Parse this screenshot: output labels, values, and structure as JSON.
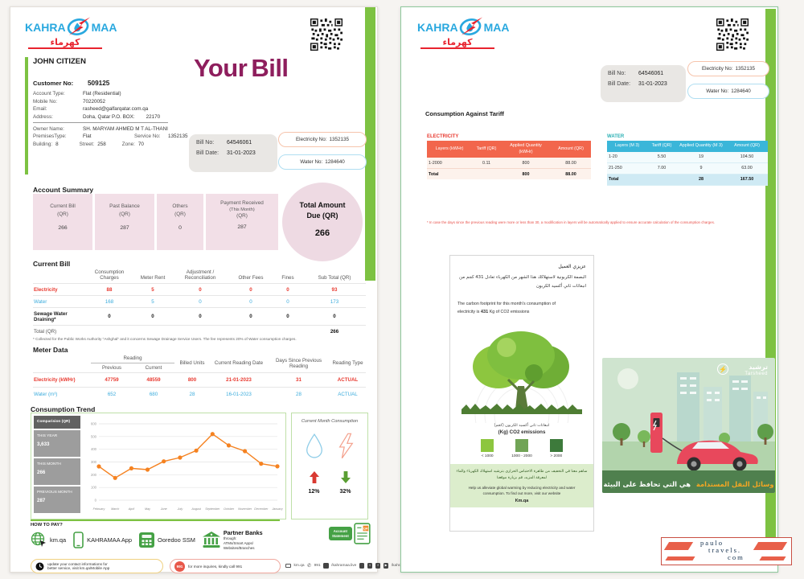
{
  "colors": {
    "brand_blue": "#29a8df",
    "brand_red": "#e8232e",
    "accent_green": "#7dc242",
    "pale_green": "#d5ecc2",
    "title_purple": "#8e1e5d",
    "pink_card": "#f2dfe7",
    "orange_header": "#f2664c",
    "blue_header": "#3ab6d9",
    "electricity_red": "#e8392f",
    "water_blue": "#3aabdc",
    "chart_orange": "#f58220",
    "legend_greens": [
      "#8dc63f",
      "#71a456",
      "#3d7a3b"
    ]
  },
  "brand": {
    "kahra": "KAHRA",
    "maa": "MAA",
    "arabic": "كهرماء"
  },
  "billbox": {
    "bill_no_label": "Bill No:",
    "bill_no": "64546061",
    "bill_date_label": "Bill Date:",
    "bill_date": "31-01-2023"
  },
  "service_pills": {
    "electricity_label": "Electricity No:",
    "electricity_no": "1352135",
    "water_label": "Water No:",
    "water_no": "1284640"
  },
  "page1": {
    "customer_name": "JOHN CITIZEN",
    "title_your": "Your",
    "title_bill": "Bill",
    "info": [
      {
        "label": "Customer No:",
        "value": "509125"
      },
      {
        "label": "Account Type:",
        "value": "Flat (Residential)"
      },
      {
        "label": "Mobile No:",
        "value": "70220052"
      },
      {
        "label": "Email:",
        "value": "rasheed@galfarqatar.com.qa"
      },
      {
        "label": "Address:",
        "value": "Doha, Qatar P.O. BOX:",
        "extra": "22170"
      }
    ],
    "owner": [
      {
        "label": "Owner Name:",
        "value": "SH. MARYAM AHMED M T AL-THANI"
      },
      {
        "label": "PremisesType:",
        "value": "Flat",
        "label2": "Service No:",
        "value2": "1352135"
      },
      {
        "label": "Building:",
        "value": "8",
        "label2": "Street:",
        "value2": "258",
        "label3": "Zone:",
        "value3": "70"
      }
    ],
    "account_summary": {
      "title": "Account Summary",
      "cards": [
        {
          "line1": "Current Bill",
          "line2": "(QR)",
          "value": "266"
        },
        {
          "line1": "Past Balance",
          "line2": "(QR)",
          "value": "287"
        },
        {
          "line1": "Others",
          "line2": "(QR)",
          "value": "0"
        },
        {
          "line1": "Payment Received",
          "line2": "(This Month)",
          "line3": "(QR)",
          "value": "287"
        }
      ],
      "total_line1": "Total Amount",
      "total_line2": "Due (QR)",
      "total_value": "266"
    },
    "current_bill": {
      "title": "Current Bill",
      "headers": [
        "Consumption Charges",
        "Meter Rent",
        "Adjustment / Reconciliation",
        "Other Fees",
        "Fines",
        "Sub Total (QR)"
      ],
      "rows": [
        {
          "label": "Electricity",
          "values": [
            "88",
            "5",
            "0",
            "0",
            "0",
            "93"
          ]
        },
        {
          "label": "Water",
          "values": [
            "168",
            "5",
            "0",
            "0",
            "0",
            "173"
          ]
        },
        {
          "label": "Sewage Water Draining*",
          "values": [
            "0",
            "0",
            "0",
            "0",
            "0",
            "0"
          ]
        }
      ],
      "total_label": "Total (QR)",
      "total_value": "266",
      "footnote": "* Collected for the Public Works Authority \"Ashghal\" and it concerns Sewage Drainage Service Users. The fee represents 20% of Water consumption charges."
    },
    "meter_data": {
      "title": "Meter Data",
      "reading_group": "Reading",
      "sub_headers": [
        "Previous",
        "Current"
      ],
      "headers": [
        "Billed Units",
        "Current Reading Date",
        "Days Since Previous Reading",
        "Reading Type"
      ],
      "rows": [
        {
          "label": "Electricity (kWHr)",
          "values": [
            "47759",
            "48559",
            "800",
            "21-01-2023",
            "31",
            "ACTUAL"
          ]
        },
        {
          "label": "Water (m³)",
          "values": [
            "652",
            "680",
            "28",
            "16-01-2023",
            "28",
            "ACTUAL"
          ]
        }
      ]
    },
    "trend": {
      "title": "Consumption Trend",
      "sidebar_header": "Comparision (QR)",
      "sidebar": [
        {
          "label": "THIS YEAR",
          "value": "3,633"
        },
        {
          "label": "THIS MONTH",
          "value": "266"
        },
        {
          "label": "PREVIOUS MONTH",
          "value": "287"
        }
      ]
    },
    "current_month": {
      "title": "Current Month Consumption",
      "water_change": "12%",
      "electricity_change": "32%"
    },
    "how_to_pay": {
      "title": "HOW TO PAY?",
      "methods": [
        {
          "label": "km.qa"
        },
        {
          "label": "KAHRAMAA App"
        },
        {
          "label": "Ooredoo SSM"
        },
        {
          "label": "Partner Banks",
          "sub1": "through:",
          "sub2": "ATMs/Smart Apps/",
          "sub3": "Websites/Branches"
        }
      ],
      "account_statement_1": "Account",
      "account_statement_2": "Statement",
      "notice_contact_1": "update your contact informations for",
      "notice_contact_2": "better service, visit km.qa/Mobile App",
      "notice_badge": "991",
      "notice_call": "for more inquires, kindly call 991",
      "contacts": {
        "web": "km.qa",
        "phone": "991",
        "app": "/kahramaa.live",
        "social": "/kahramaa",
        "whatsapp": "30303991"
      }
    }
  },
  "page2": {
    "heading": "Consumption Against Tariff",
    "electricity_table": {
      "title": "ELECTRICITY",
      "headers": [
        "Layers (kWHr)",
        "Tariff (QR)",
        "Applied Quantity (kWHr)",
        "Amount (QR)"
      ],
      "rows": [
        [
          "1-2000",
          "0.11",
          "800",
          "88.00"
        ]
      ],
      "total": {
        "label": "Total",
        "qty": "800",
        "amount": "88.00"
      }
    },
    "water_table": {
      "title": "WATER",
      "headers": [
        "Layers (M 3)",
        "Tariff (QR)",
        "Applied Quantity (M 3)",
        "Amount (QR)"
      ],
      "rows": [
        [
          "1-20",
          "5.50",
          "19",
          "104.50"
        ],
        [
          "21-250",
          "7.00",
          "9",
          "63.00"
        ]
      ],
      "total": {
        "label": "Total",
        "qty": "28",
        "amount": "167.50"
      }
    },
    "footnote": "* In case the days since the previous reading were more or less than 30, a modification in layers will be automatically applied to ensure accurate calculation of the consumption charges.",
    "carbon": {
      "arabic_title": "عزيزي العميل",
      "arabic_line1": "البصمة الكربونية لاستهلاكك هذا الشهر من الكهرباء تعادل 431 كجم من",
      "arabic_line2": "انبعاثات ثاني أكسيد الكربون",
      "english_line1": "The carbon footprint for this month's consumption of",
      "english_line2_pre": "electricity is",
      "english_value": "431",
      "english_post": "Kg of CO2 emissions",
      "legend_arabic": "انبعاثات ثاني أكسيد الكربون (كجم)",
      "legend_title": "(Kg) CO2 emissions",
      "legend": [
        {
          "label": "< 1000"
        },
        {
          "label": "1000 - 2000"
        },
        {
          "label": "> 2000"
        }
      ],
      "footer_arabic1": "ساهم معنا في التخفيف من ظاهرة الاحتباس الحراري بترشيد استهلاك الكهرباء والماء",
      "footer_arabic2": "لمعرفة المزيد، قم بزيارة موقعنا",
      "footer_english1": "Help us alleviate global warming by reducing electricity and water",
      "footer_english2": "consumption. To find out more, visit our website",
      "footer_link": "Km.qa"
    },
    "tarsheed": {
      "logo_en": "Tarsheed",
      "logo_ar": "ترشيد",
      "caption_orange": "وسائل النقل المستدامة",
      "caption_white": "هي التي تحافظ على البيئة"
    }
  },
  "chart_data": {
    "type": "line",
    "title": "Comparision (QR)",
    "x": [
      "February",
      "March",
      "April",
      "May",
      "June",
      "July",
      "August",
      "September",
      "October",
      "November",
      "December",
      "January"
    ],
    "series": [
      {
        "name": "Consumption (QR)",
        "values": [
          265,
          175,
          250,
          240,
          305,
          335,
          390,
          520,
          430,
          385,
          287,
          266
        ]
      }
    ],
    "ylim": [
      0,
      600
    ],
    "yticks": [
      0,
      100,
      200,
      300,
      400,
      500,
      600
    ],
    "grid": true,
    "legend_position": "none",
    "line_color": "#f58220"
  },
  "watermark": {
    "line1": "paulo",
    "line2": "travels.",
    "line3": "com"
  }
}
